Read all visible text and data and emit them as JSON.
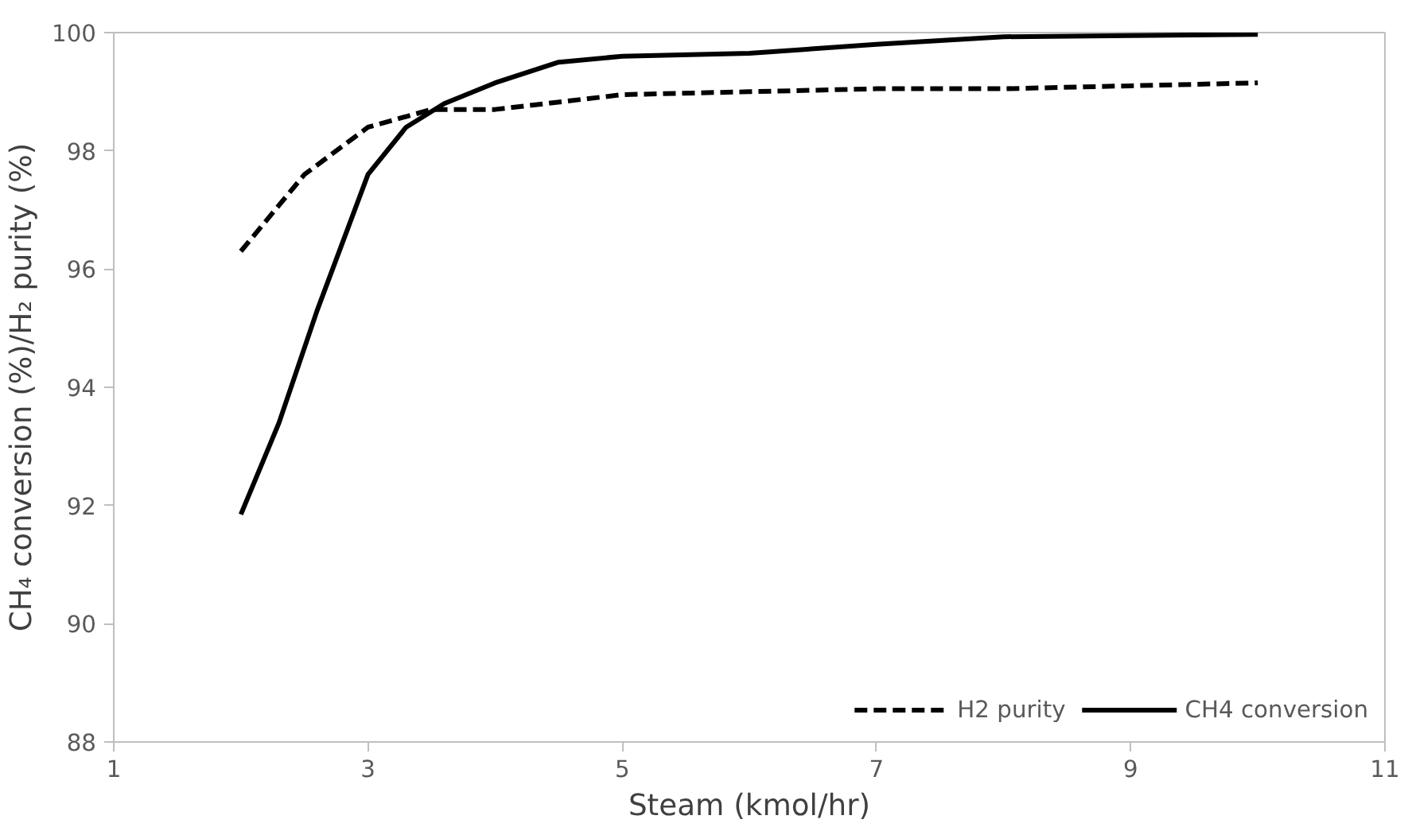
{
  "chart_data": {
    "type": "line",
    "xlabel": "Steam (kmol/hr)",
    "ylabel": "CH₄ conversion (%)/H₂ purity (%)",
    "xlim": [
      1,
      11
    ],
    "xticks": [
      1,
      3,
      5,
      7,
      9,
      11
    ],
    "ylim": [
      88,
      100
    ],
    "yticks": [
      88,
      90,
      92,
      94,
      96,
      98,
      100
    ],
    "grid": false,
    "legend": "bottom right",
    "marker": "none",
    "series": [
      {
        "name": "H2 purity",
        "color": "#000000",
        "line_style": "dashed",
        "x": [
          2,
          2.5,
          3,
          3.5,
          4,
          5,
          6,
          7,
          8,
          9,
          10
        ],
        "values": [
          96.3,
          97.6,
          98.4,
          98.7,
          98.7,
          98.95,
          99.0,
          99.05,
          99.05,
          99.1,
          99.15
        ]
      },
      {
        "name": "CH4 conversion",
        "color": "#000000",
        "line_style": "solid",
        "x": [
          2,
          2.3,
          2.6,
          3,
          3.3,
          3.6,
          4,
          4.5,
          5,
          6,
          7,
          8,
          9,
          10
        ],
        "values": [
          91.85,
          93.4,
          95.3,
          97.6,
          98.4,
          98.8,
          99.15,
          99.5,
          99.6,
          99.65,
          99.8,
          99.93,
          99.95,
          99.97
        ]
      }
    ]
  }
}
